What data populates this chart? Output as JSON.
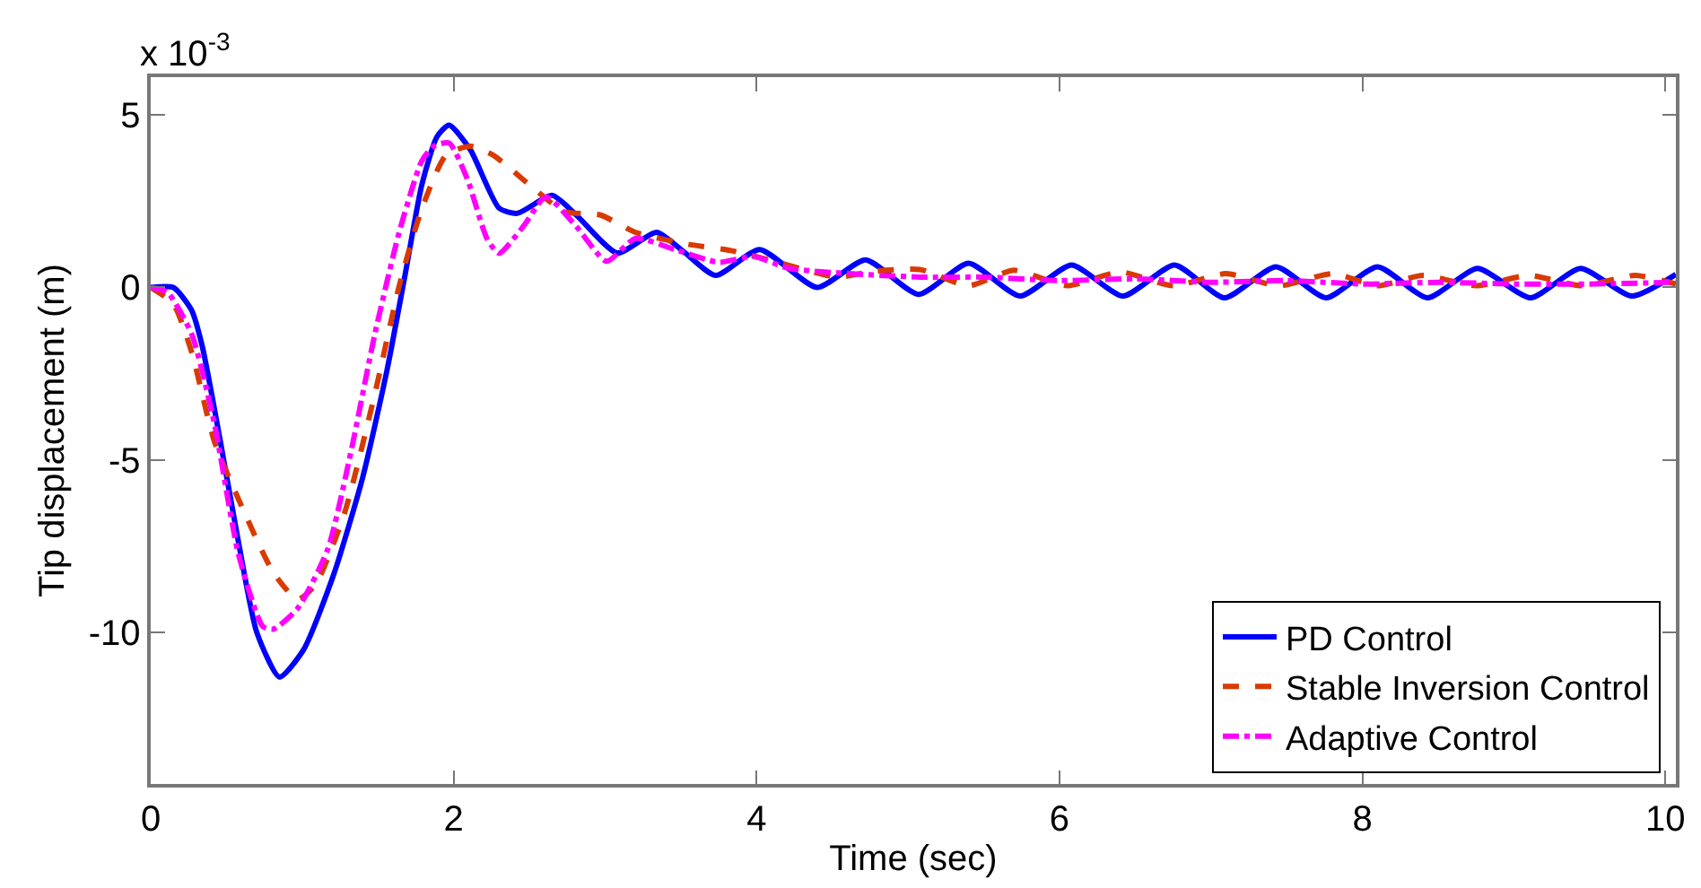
{
  "chart_data": {
    "type": "line",
    "xlabel": "Time (sec)",
    "ylabel": "Tip displacement (m)",
    "annotations": [
      "x 10$^{-3}$"
    ],
    "xlim": [
      0,
      10.07
    ],
    "xticks": [
      0,
      2,
      4,
      6,
      8,
      10
    ],
    "ylim": [
      -14.4,
      6.1
    ],
    "yticks": [
      -10,
      -5,
      0,
      5
    ],
    "legend": "bottom right",
    "series": [
      {
        "name": "PD Control",
        "color": "#0000ff",
        "line_style": "solid",
        "x": [
          0,
          0.15,
          0.27,
          0.34,
          0.46,
          0.58,
          0.7,
          0.85,
          1.01,
          1.21,
          1.4,
          1.56,
          1.68,
          1.79,
          1.89,
          1.97,
          2.11,
          2.3,
          2.42,
          2.65,
          2.81,
          3.08,
          3.34,
          3.51,
          3.73,
          4.02,
          4.4,
          4.72,
          5.07,
          5.4,
          5.74,
          6.08,
          6.42,
          6.76,
          7.09,
          7.43,
          7.76,
          8.1,
          8.43,
          8.76,
          9.11,
          9.44,
          9.78,
          10.07
        ],
        "values": [
          0,
          0,
          -0.66,
          -1.7,
          -4.47,
          -7.4,
          -10.0,
          -11.3,
          -10.5,
          -8.3,
          -5.5,
          -2.4,
          0.38,
          2.98,
          4.37,
          4.71,
          4.0,
          2.3,
          2.15,
          2.67,
          2.1,
          1.0,
          1.6,
          1.07,
          0.35,
          1.1,
          0,
          0.8,
          -0.2,
          0.7,
          -0.25,
          0.65,
          -0.25,
          0.65,
          -0.3,
          0.6,
          -0.3,
          0.6,
          -0.3,
          0.55,
          -0.3,
          0.55,
          -0.25,
          0.38
        ]
      },
      {
        "name": "Stable Inversion Control",
        "color": "#d93a00",
        "line_style": "dashed",
        "x": [
          0,
          0.15,
          0.27,
          0.42,
          0.62,
          0.81,
          0.97,
          1.09,
          1.28,
          1.48,
          1.64,
          1.79,
          1.95,
          2.11,
          2.26,
          2.5,
          2.73,
          2.97,
          3.2,
          3.55,
          3.83,
          4.14,
          4.53,
          4.77,
          5.08,
          5.4,
          5.7,
          6.05,
          6.4,
          6.75,
          7.1,
          7.45,
          7.8,
          8.1,
          8.4,
          8.75,
          9.1,
          9.45,
          9.8,
          10.07
        ],
        "values": [
          0,
          -0.48,
          -1.87,
          -4.46,
          -6.54,
          -8.27,
          -9.05,
          -8.6,
          -6.54,
          -3.08,
          0.03,
          2.28,
          3.84,
          4.1,
          3.84,
          2.98,
          2.2,
          2.1,
          1.6,
          1.25,
          1.07,
          0.73,
          0.3,
          0.47,
          0.52,
          0.05,
          0.5,
          0.05,
          0.45,
          0.05,
          0.4,
          0.05,
          0.4,
          0.05,
          0.35,
          0.05,
          0.35,
          0.05,
          0.35,
          0.1
        ]
      },
      {
        "name": "Adaptive Control",
        "color": "#ff00ff",
        "line_style": "dashdot",
        "x": [
          0,
          0.11,
          0.27,
          0.42,
          0.58,
          0.74,
          0.81,
          0.97,
          1.17,
          1.32,
          1.48,
          1.64,
          1.79,
          1.87,
          1.97,
          2.09,
          2.22,
          2.3,
          2.46,
          2.61,
          2.81,
          3.01,
          3.2,
          3.48,
          3.75,
          3.98,
          4.22,
          5.08,
          5.5,
          6.0,
          6.5,
          7.0,
          7.5,
          8.0,
          8.5,
          9.0,
          9.5,
          10.07
        ],
        "values": [
          0,
          -0.14,
          -1.35,
          -3.94,
          -7.75,
          -9.83,
          -9.91,
          -9.31,
          -7.58,
          -4.81,
          -1.35,
          1.59,
          3.67,
          4.1,
          4.19,
          3.15,
          1.42,
          0.99,
          1.77,
          2.63,
          1.77,
          0.76,
          1.42,
          1.07,
          0.73,
          0.9,
          0.55,
          0.3,
          0.3,
          0.2,
          0.25,
          0.15,
          0.2,
          0.1,
          0.15,
          0.1,
          0.1,
          0.15
        ]
      }
    ]
  }
}
